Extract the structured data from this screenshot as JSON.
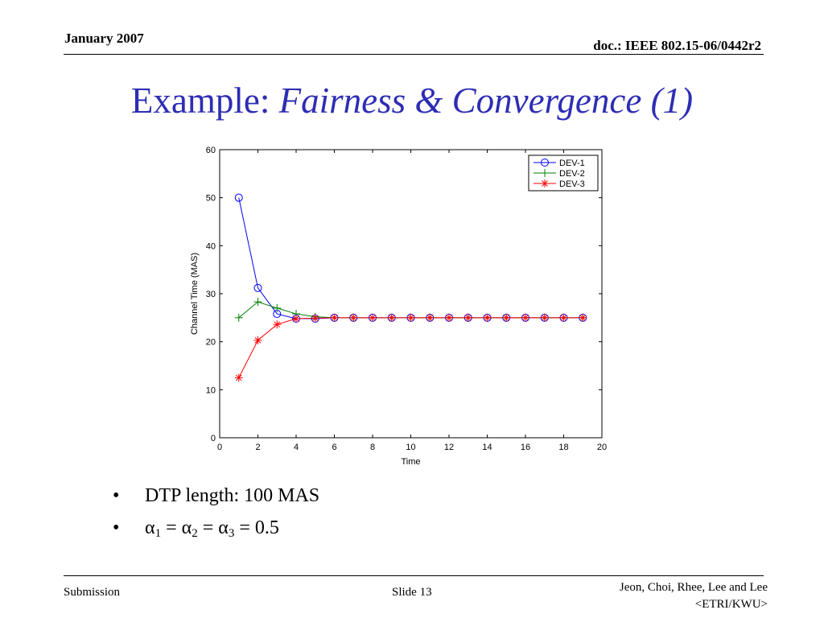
{
  "header": {
    "date": "January 2007",
    "doc": "doc.: IEEE 802.15-06/0442r2"
  },
  "title": {
    "prefix": "Example: ",
    "rest": "Fairness & Convergence (1)"
  },
  "chart_data": {
    "type": "line",
    "xlabel": "Time",
    "ylabel": "Channel Time (MAS)",
    "xlim": [
      0,
      20
    ],
    "ylim": [
      0,
      60
    ],
    "xticks": [
      0,
      2,
      4,
      6,
      8,
      10,
      12,
      14,
      16,
      18,
      20
    ],
    "yticks": [
      0,
      10,
      20,
      30,
      40,
      50,
      60
    ],
    "grid": false,
    "legend_position": "top-right",
    "x": [
      1,
      2,
      3,
      4,
      5,
      6,
      7,
      8,
      9,
      10,
      11,
      12,
      13,
      14,
      15,
      16,
      17,
      18,
      19
    ],
    "series": [
      {
        "name": "DEV-1",
        "color": "#0000ff",
        "marker": "circle",
        "values": [
          50,
          31.2,
          25.8,
          24.8,
          24.8,
          25,
          25,
          25,
          25,
          25,
          25,
          25,
          25,
          25,
          25,
          25,
          25,
          25,
          25
        ]
      },
      {
        "name": "DEV-2",
        "color": "#008000",
        "marker": "plus",
        "values": [
          25,
          28.3,
          27,
          25.8,
          25.2,
          25,
          25,
          25,
          25,
          25,
          25,
          25,
          25,
          25,
          25,
          25,
          25,
          25,
          25
        ]
      },
      {
        "name": "DEV-3",
        "color": "#ff0000",
        "marker": "asterisk",
        "values": [
          12.5,
          20.3,
          23.6,
          24.8,
          24.9,
          25,
          25,
          25,
          25,
          25,
          25,
          25,
          25,
          25,
          25,
          25,
          25,
          25,
          25
        ]
      }
    ]
  },
  "bullets": {
    "b1": "DTP length: 100 MAS",
    "alpha": "α",
    "sub1": "1",
    "sub2": "2",
    "sub3": "3",
    "eq": " = ",
    "value": "0.5",
    "bullet_char": "•"
  },
  "footer": {
    "left": "Submission",
    "center": "Slide 13",
    "right_line1": "Jeon, Choi, Rhee, Lee and Lee",
    "right_line2": "<ETRI/KWU>"
  }
}
